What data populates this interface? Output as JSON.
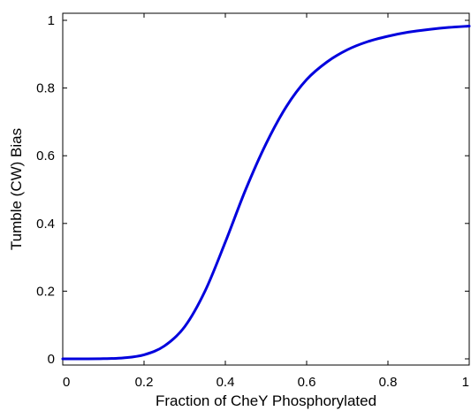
{
  "chart_data": {
    "type": "line",
    "title": "",
    "xlabel": "Fraction of CheY Phosphorylated",
    "ylabel": "Tumble (CW) Bias",
    "xlim": [
      0,
      1
    ],
    "ylim": [
      0,
      1
    ],
    "xticks": [
      {
        "value": 0,
        "label": "0"
      },
      {
        "value": 0.2,
        "label": "0.2"
      },
      {
        "value": 0.4,
        "label": "0.4"
      },
      {
        "value": 0.6,
        "label": "0.6"
      },
      {
        "value": 0.8,
        "label": "0.8"
      },
      {
        "value": 1,
        "label": "1"
      }
    ],
    "yticks": [
      {
        "value": 0,
        "label": "0"
      },
      {
        "value": 0.2,
        "label": "0.2"
      },
      {
        "value": 0.4,
        "label": "0.4"
      },
      {
        "value": 0.6,
        "label": "0.6"
      },
      {
        "value": 0.8,
        "label": "0.8"
      },
      {
        "value": 1,
        "label": "1"
      }
    ],
    "grid": false,
    "legend": "none",
    "series": [
      {
        "color": "#0000dd",
        "x": [
          0,
          0.05,
          0.1,
          0.15,
          0.2,
          0.25,
          0.3,
          0.35,
          0.4,
          0.45,
          0.5,
          0.55,
          0.6,
          0.65,
          0.7,
          0.75,
          0.8,
          0.85,
          0.9,
          0.95,
          1.0
        ],
        "y": [
          0.0,
          0.0,
          0.0005,
          0.003,
          0.012,
          0.038,
          0.095,
          0.2,
          0.345,
          0.5,
          0.635,
          0.745,
          0.825,
          0.877,
          0.913,
          0.937,
          0.953,
          0.965,
          0.973,
          0.979,
          0.983
        ]
      }
    ]
  }
}
